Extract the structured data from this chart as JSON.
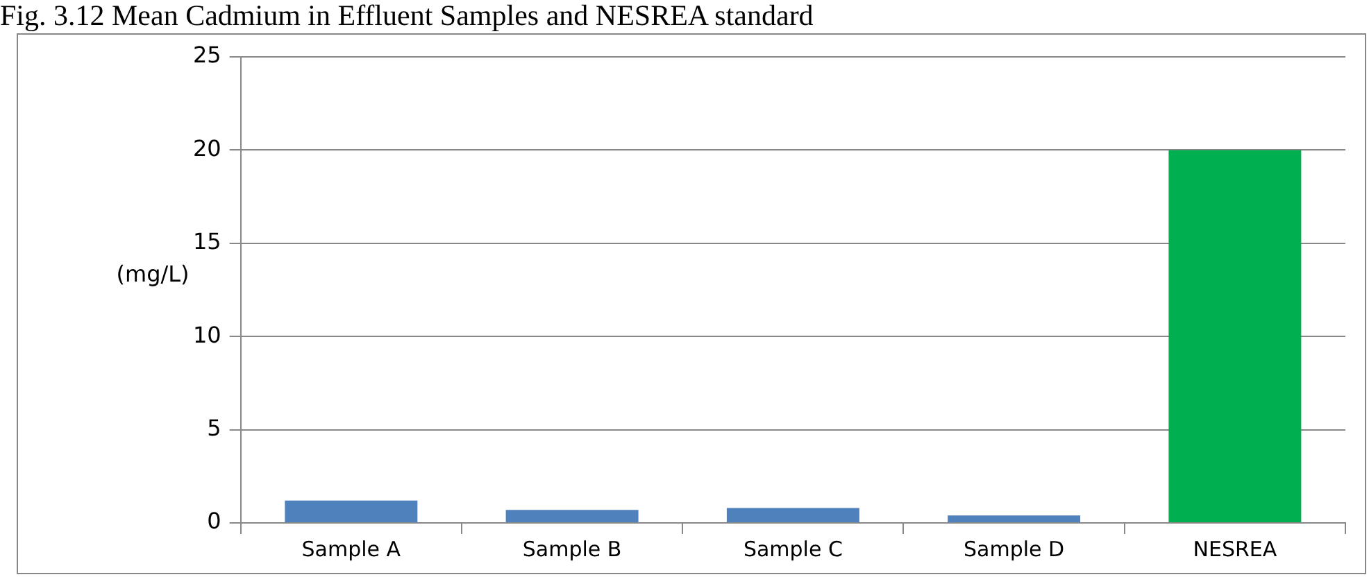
{
  "chart_data": {
    "type": "bar",
    "title": "Fig. 3.12 Mean Cadmium in Effluent Samples and NESREA standard",
    "ylabel": "(mg/L)",
    "categories": [
      "Sample A",
      "Sample B",
      "Sample C",
      "Sample D",
      "NESREA"
    ],
    "values": [
      1.2,
      0.7,
      0.8,
      0.4,
      20
    ],
    "colors": [
      "#4f81bd",
      "#4f81bd",
      "#4f81bd",
      "#4f81bd",
      "#00b050"
    ],
    "ylim": [
      0,
      25
    ],
    "yticks": [
      0,
      5,
      10,
      15,
      20,
      25
    ],
    "grid": "y",
    "legend": false
  }
}
